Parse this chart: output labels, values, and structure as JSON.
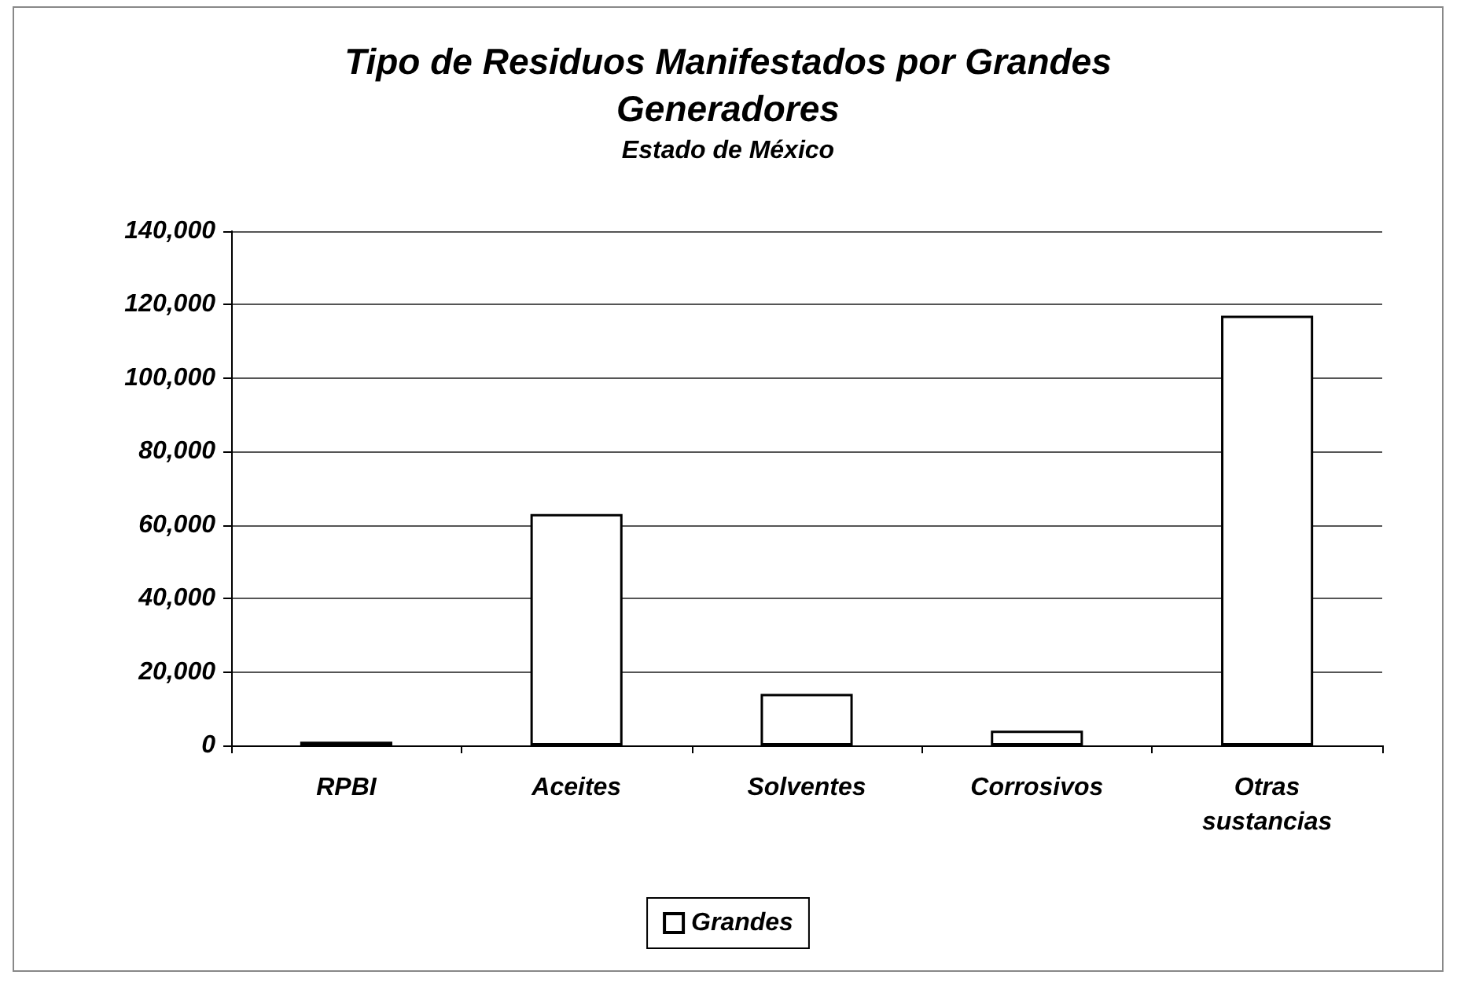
{
  "chart_data": {
    "type": "bar",
    "title": "Tipo de Residuos Manifestados por Grandes\nGeneradores",
    "subtitle": "Estado de México",
    "categories": [
      "RPBI",
      "Aceites",
      "Solventes",
      "Corrosivos",
      "Otras\nsustancias"
    ],
    "series": [
      {
        "name": "Grandes",
        "color": "#ffffff",
        "values": [
          1000,
          63000,
          14000,
          4000,
          117000
        ]
      }
    ],
    "ylim": [
      0,
      140000
    ],
    "yticks": [
      0,
      {
        "value": 20000,
        "label": "20,000"
      },
      {
        "value": 40000,
        "label": "40,000"
      },
      {
        "value": 60000,
        "label": "60,000"
      },
      {
        "value": 80000,
        "label": "80,000"
      },
      {
        "value": 100000,
        "label": "100,000"
      },
      {
        "value": 120000,
        "label": "120,000"
      },
      {
        "value": 140000,
        "label": "140,000"
      }
    ],
    "grid": "y",
    "legend": "bottom"
  }
}
